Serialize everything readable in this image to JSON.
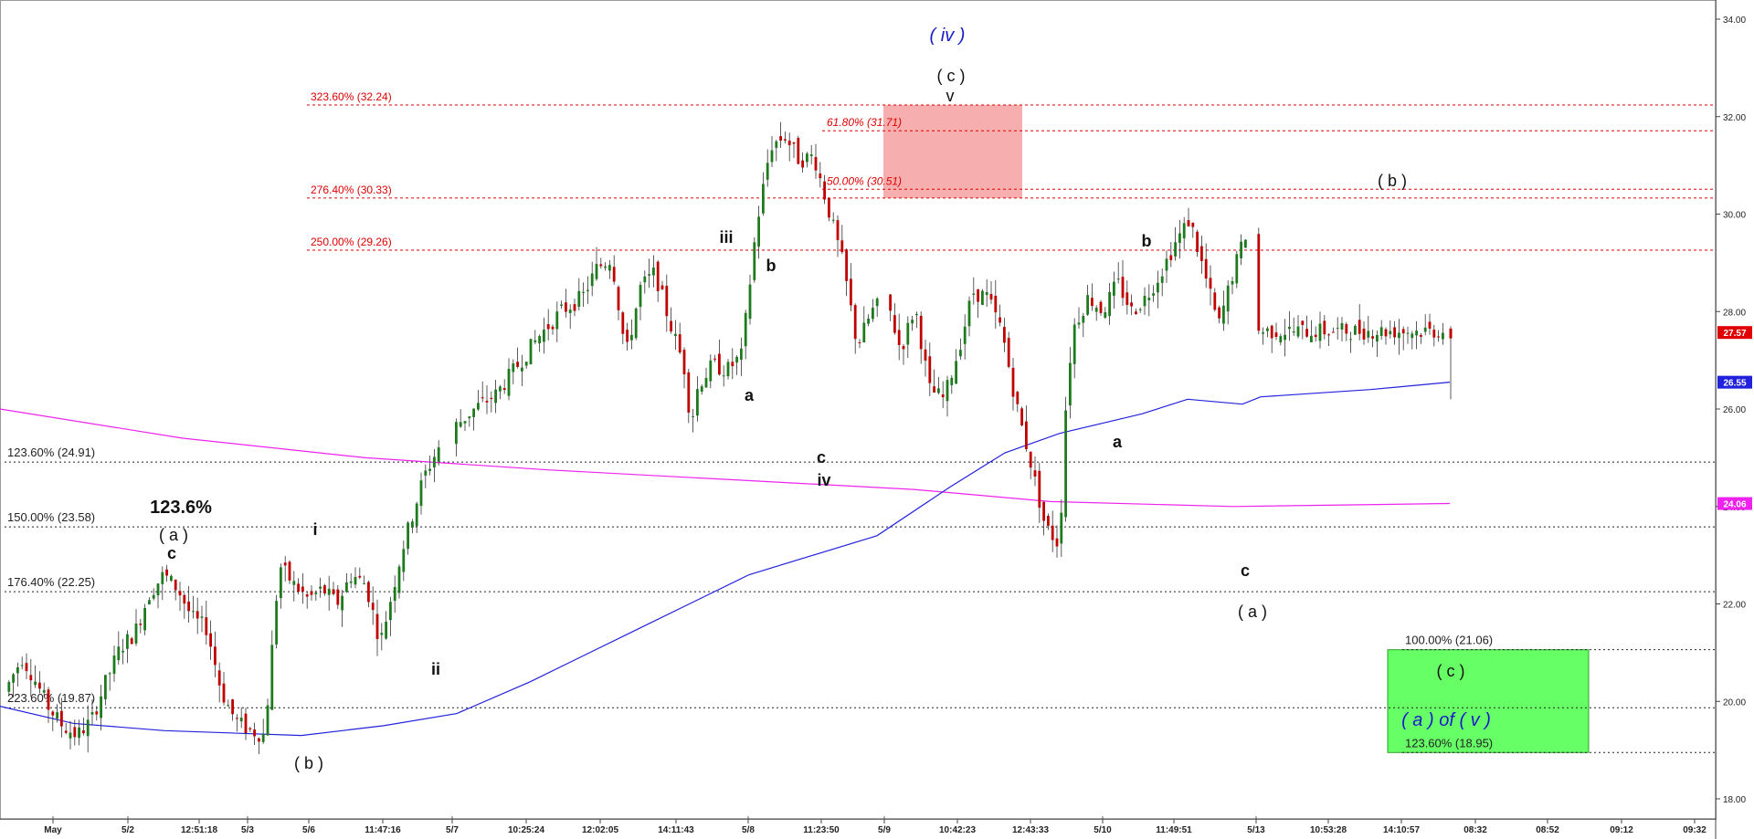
{
  "chart_data": {
    "type": "candlestick",
    "y_range": [
      17.5,
      34.5
    ],
    "y_ticks": [
      "18.00",
      "20.00",
      "22.00",
      "24.00",
      "26.00",
      "28.00",
      "30.00",
      "32.00",
      "34.00"
    ],
    "x_ticks": [
      "May",
      "5/2",
      "12:51:18",
      "5/3",
      "5/6",
      "11:47:16",
      "5/7",
      "10:25:24",
      "12:02:05",
      "14:11:43",
      "5/8",
      "11:23:50",
      "5/9",
      "10:42:23",
      "12:43:33",
      "5/10",
      "11:49:51",
      "5/13",
      "10:53:28",
      "14:10:57",
      "08:32",
      "08:52",
      "09:12",
      "09:32"
    ],
    "colors": {
      "up": "#1f7a1f",
      "down": "#c00000",
      "ma_blue": "#2222dd",
      "ma_magenta": "#ee22ee",
      "level_red": "#e00000",
      "level_black": "#222222",
      "target_box": "#66ff66",
      "resistance_box": "#f4a0a0"
    },
    "badges": [
      {
        "text": "27.57",
        "value": 27.57,
        "color": "#e00000"
      },
      {
        "text": "26.55",
        "value": 26.55,
        "color": "#2222dd"
      },
      {
        "text": "24.06",
        "value": 24.06,
        "color": "#ee22ee"
      }
    ],
    "levels_red": [
      {
        "label": "323.60% (32.24)",
        "value": 32.24
      },
      {
        "label": "61.80% (31.71)",
        "value": 31.71
      },
      {
        "label": "50.00% (30.51)",
        "value": 30.51
      },
      {
        "label": "276.40% (30.33)",
        "value": 30.33
      },
      {
        "label": "250.00% (29.26)",
        "value": 29.26
      }
    ],
    "levels_black": [
      {
        "label": "123.60% (24.91)",
        "value": 24.91
      },
      {
        "label": "150.00% (23.58)",
        "value": 23.58
      },
      {
        "label": "176.40% (22.25)",
        "value": 22.25
      },
      {
        "label": "223.60% (19.87)",
        "value": 19.87
      },
      {
        "label": "100.00% (21.06)",
        "value": 21.06
      },
      {
        "label": "123.60% (18.95)",
        "value": 18.95
      }
    ],
    "wave_labels": {
      "iv_major": "( iv )",
      "c_top": "( c )",
      "v": "v",
      "iii": "iii",
      "b1": "b",
      "a1": "a",
      "c1": "c",
      "iv": "iv",
      "b2": "b",
      "a2": "a",
      "b_paren": "( b )",
      "c2": "c",
      "a_paren": "( a )",
      "pct_callout": "123.6%",
      "a_paren_left": "( a )",
      "c_left": "c",
      "i": "i",
      "ii": "ii",
      "b_paren_left": "( b )",
      "c_target": "( c )",
      "a_of_v": "( a ) of ( v )"
    },
    "price_path": [
      [
        0,
        20.2
      ],
      [
        0.012,
        20.9
      ],
      [
        0.02,
        20.5
      ],
      [
        0.03,
        19.9
      ],
      [
        0.04,
        19.5
      ],
      [
        0.05,
        19.3
      ],
      [
        0.06,
        19.6
      ],
      [
        0.07,
        20.4
      ],
      [
        0.08,
        21.1
      ],
      [
        0.09,
        21.4
      ],
      [
        0.1,
        22.2
      ],
      [
        0.11,
        22.6
      ],
      [
        0.12,
        22.3
      ],
      [
        0.13,
        21.7
      ],
      [
        0.14,
        21.5
      ],
      [
        0.15,
        20.2
      ],
      [
        0.16,
        19.6
      ],
      [
        0.17,
        19.4
      ],
      [
        0.18,
        19.3
      ],
      [
        0.19,
        22.8
      ],
      [
        0.2,
        22.4
      ],
      [
        0.21,
        22.1
      ],
      [
        0.22,
        22.3
      ],
      [
        0.23,
        22.0
      ],
      [
        0.24,
        22.6
      ],
      [
        0.25,
        22.4
      ],
      [
        0.26,
        21.2
      ],
      [
        0.275,
        23.1
      ],
      [
        0.29,
        24.6
      ],
      [
        0.3,
        25.2
      ],
      [
        0.31,
        25.6
      ],
      [
        0.325,
        26.0
      ],
      [
        0.34,
        26.3
      ],
      [
        0.355,
        26.9
      ],
      [
        0.37,
        27.5
      ],
      [
        0.385,
        28.0
      ],
      [
        0.4,
        28.3
      ],
      [
        0.41,
        28.9
      ],
      [
        0.42,
        29.1
      ],
      [
        0.43,
        27.1
      ],
      [
        0.44,
        28.5
      ],
      [
        0.45,
        28.8
      ],
      [
        0.46,
        27.8
      ],
      [
        0.47,
        26.9
      ],
      [
        0.475,
        25.7
      ],
      [
        0.48,
        26.5
      ],
      [
        0.49,
        26.9
      ],
      [
        0.5,
        26.8
      ],
      [
        0.51,
        27.1
      ],
      [
        0.52,
        29.7
      ],
      [
        0.53,
        31.4
      ],
      [
        0.54,
        31.6
      ],
      [
        0.55,
        31.1
      ],
      [
        0.56,
        31.2
      ],
      [
        0.57,
        30.1
      ],
      [
        0.58,
        29.0
      ],
      [
        0.59,
        27.3
      ],
      [
        0.6,
        28.0
      ],
      [
        0.61,
        28.3
      ],
      [
        0.62,
        27.2
      ],
      [
        0.63,
        28.1
      ],
      [
        0.64,
        26.4
      ],
      [
        0.65,
        26.2
      ],
      [
        0.66,
        27.2
      ],
      [
        0.67,
        28.4
      ],
      [
        0.68,
        28.3
      ],
      [
        0.69,
        27.6
      ],
      [
        0.7,
        26.1
      ],
      [
        0.71,
        24.9
      ],
      [
        0.72,
        23.6
      ],
      [
        0.73,
        23.2
      ],
      [
        0.735,
        26.5
      ],
      [
        0.74,
        27.7
      ],
      [
        0.75,
        28.3
      ],
      [
        0.76,
        28.0
      ],
      [
        0.77,
        28.6
      ],
      [
        0.78,
        28.0
      ],
      [
        0.79,
        28.3
      ],
      [
        0.8,
        28.8
      ],
      [
        0.81,
        29.4
      ],
      [
        0.82,
        29.9
      ],
      [
        0.83,
        28.8
      ],
      [
        0.84,
        27.7
      ],
      [
        0.85,
        28.8
      ],
      [
        0.86,
        29.7
      ],
      [
        0.865,
        27.6
      ]
    ]
  }
}
